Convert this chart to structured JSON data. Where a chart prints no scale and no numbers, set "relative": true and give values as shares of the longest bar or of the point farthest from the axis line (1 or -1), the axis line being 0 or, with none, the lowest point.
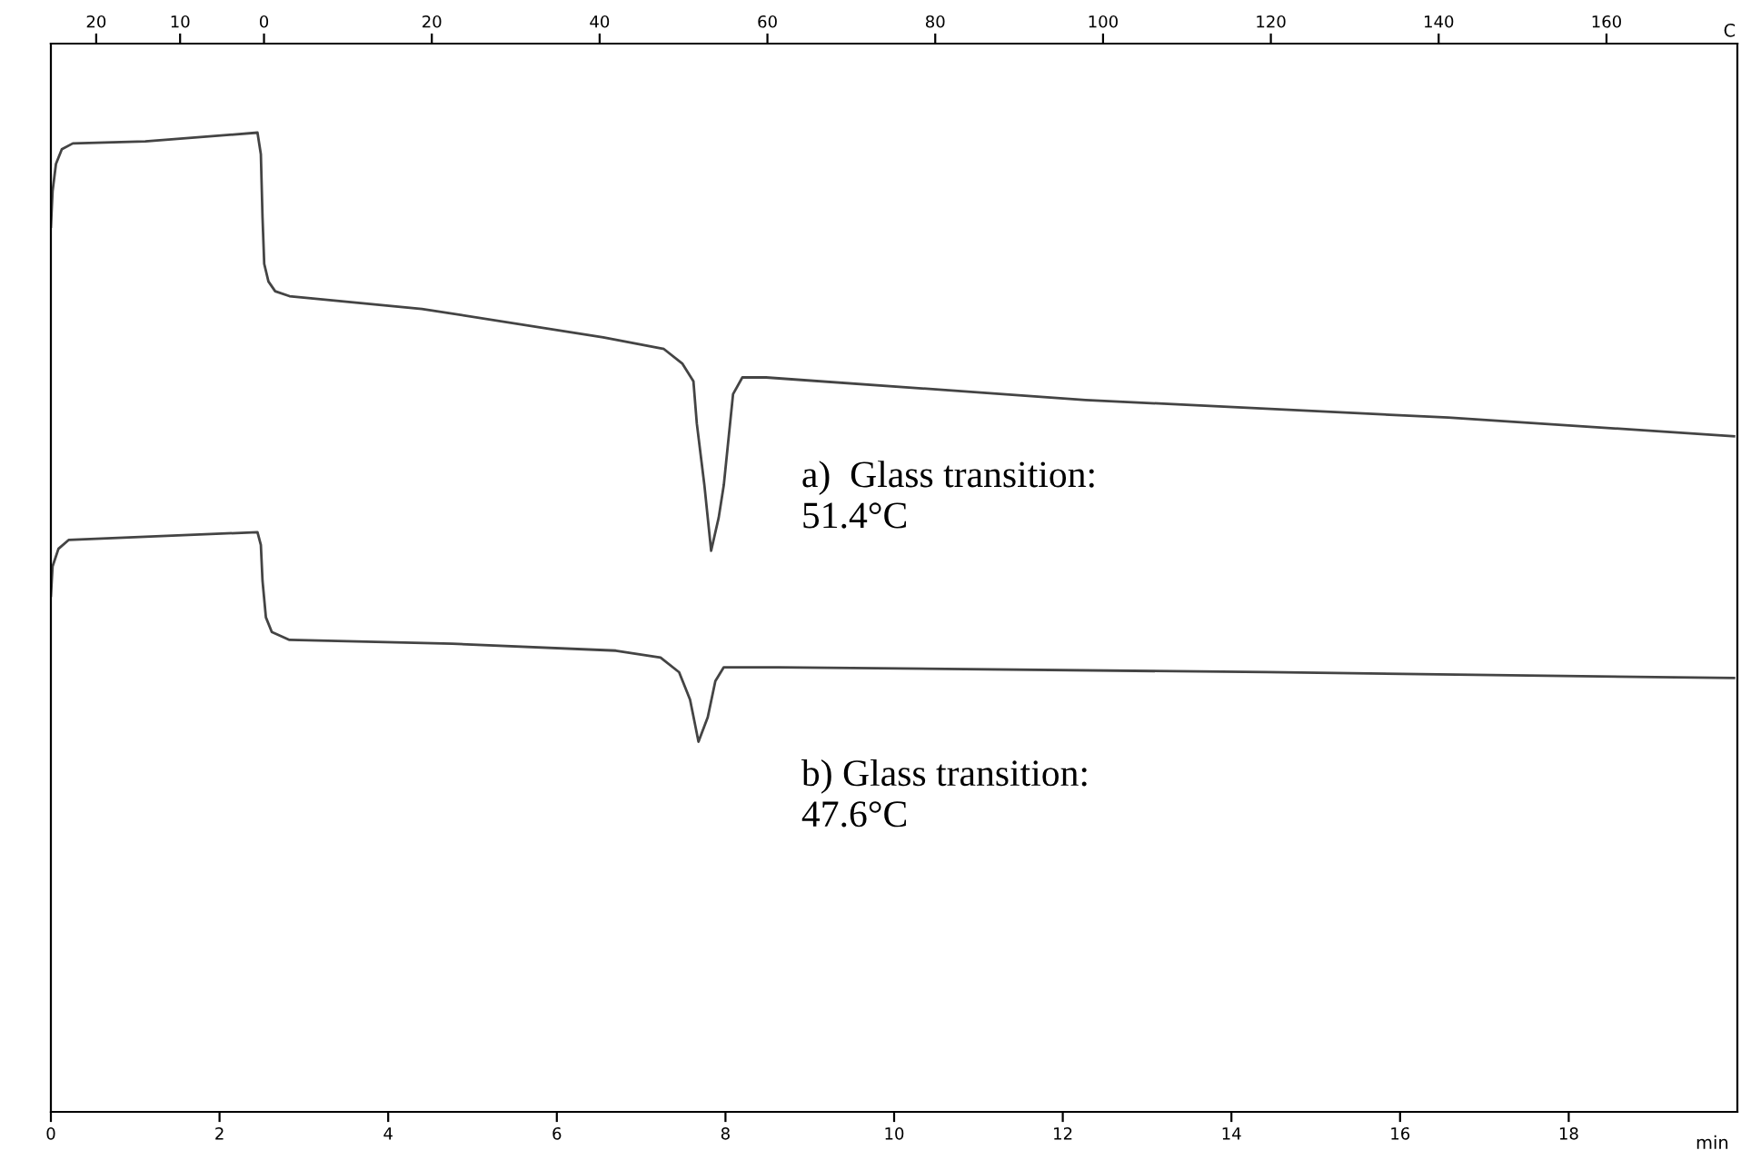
{
  "chart_data": {
    "type": "line",
    "relative": true,
    "xlabel": "min",
    "x2label": "C",
    "xlim": [
      0,
      20
    ],
    "xticks": [
      0,
      2,
      4,
      6,
      8,
      10,
      12,
      14,
      16,
      18
    ],
    "x2lim": [
      -25.4,
      175.6
    ],
    "x2ticks": [
      {
        "value": -20,
        "label": "20"
      },
      {
        "value": -10,
        "label": "10"
      },
      0,
      20,
      40,
      60,
      80,
      100,
      120,
      140,
      160
    ],
    "grid": false,
    "legend": false,
    "marker": "none",
    "line_style": "solid",
    "annotations": [
      "a)  Glass transition:\n51.4°C",
      "b) Glass transition:\n47.6°C"
    ],
    "series": [
      {
        "color": "#444444",
        "x": [
          0,
          0.02,
          0.06,
          0.13,
          0.26,
          1.12,
          2.45,
          2.49,
          2.51,
          2.53,
          2.58,
          2.66,
          2.83,
          4.4,
          6.55,
          7.27,
          7.49,
          7.62,
          7.66,
          7.75,
          7.83,
          7.92,
          7.98,
          8.09,
          8.2,
          8.48,
          12.27,
          16.57,
          19.96
        ],
        "values": [
          0.904,
          0.94,
          0.968,
          0.983,
          0.989,
          0.991,
          1,
          0.978,
          0.913,
          0.866,
          0.848,
          0.838,
          0.833,
          0.82,
          0.791,
          0.779,
          0.764,
          0.746,
          0.703,
          0.64,
          0.573,
          0.607,
          0.64,
          0.733,
          0.75,
          0.75,
          0.727,
          0.709,
          0.69
        ]
      },
      {
        "color": "#444444",
        "x": [
          0,
          0.02,
          0.09,
          0.21,
          2.45,
          2.49,
          2.51,
          2.55,
          2.62,
          2.83,
          4.76,
          6.7,
          7.23,
          7.45,
          7.58,
          7.68,
          7.79,
          7.88,
          7.98,
          8.63,
          14.42,
          19.96
        ],
        "values": [
          0.527,
          0.557,
          0.575,
          0.584,
          0.592,
          0.579,
          0.542,
          0.505,
          0.49,
          0.482,
          0.478,
          0.471,
          0.464,
          0.449,
          0.421,
          0.378,
          0.403,
          0.44,
          0.454,
          0.454,
          0.449,
          0.443
        ]
      }
    ]
  }
}
